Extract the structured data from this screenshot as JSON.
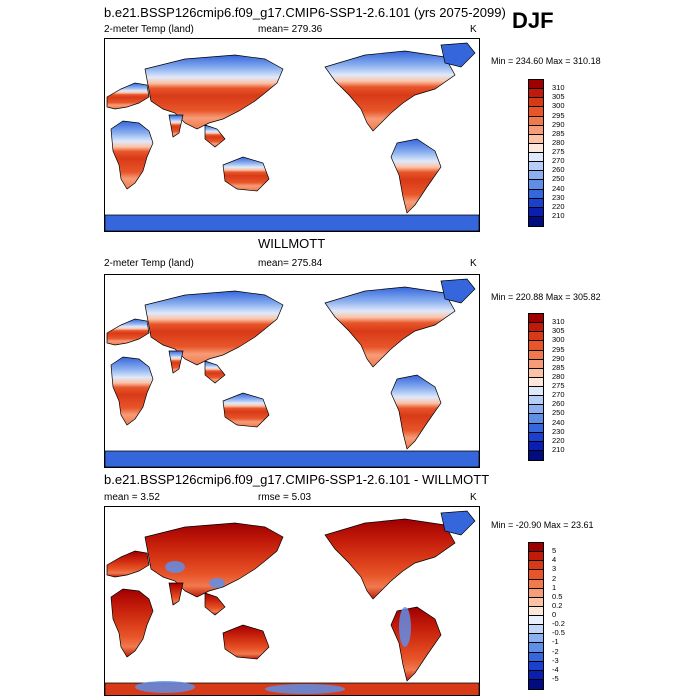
{
  "season": "DJF",
  "panels": [
    {
      "title": "b.e21.BSSP126cmip6.f09_g17.CMIP6-SSP1-2.6.101 (yrs 2075-2099)",
      "left_label": "2-meter Temp (land)",
      "center_label": "mean= 279.36",
      "right_label": "K",
      "minmax": "Min = 234.60 Max = 310.18",
      "kind": "abs"
    },
    {
      "title": "WILLMOTT",
      "left_label": "2-meter Temp (land)",
      "center_label": "mean= 275.84",
      "right_label": "K",
      "minmax": "Min = 220.88 Max = 305.82",
      "kind": "abs"
    },
    {
      "title": "b.e21.BSSP126cmip6.f09_g17.CMIP6-SSP1-2.6.101 - WILLMOTT",
      "left_label": "mean =   3.52",
      "center_label": "rmse =   5.03",
      "right_label": "K",
      "minmax": "Min = -20.90 Max =  23.61",
      "kind": "diff"
    }
  ],
  "chart_data": [
    {
      "type": "heatmap",
      "title": "b.e21.BSSP126cmip6.f09_g17.CMIP6-SSP1-2.6.101 (yrs 2075-2099)",
      "variable": "2-meter Temp (land)",
      "units": "K",
      "mean": 279.36,
      "min": 234.6,
      "max": 310.18,
      "colorbar_levels": [
        "310",
        "305",
        "300",
        "295",
        "290",
        "285",
        "280",
        "275",
        "270",
        "260",
        "250",
        "240",
        "230",
        "220",
        "210"
      ],
      "colorbar_colors": [
        "#9e0000",
        "#c21a0a",
        "#d83a17",
        "#e8552a",
        "#f07a4e",
        "#f79c78",
        "#fbc2a6",
        "#fde6da",
        "#dfe9fb",
        "#b6cdf6",
        "#8cb0ef",
        "#5f8ee6",
        "#3566dc",
        "#1b3fcf",
        "#0a1fb0",
        "#000c80"
      ]
    },
    {
      "type": "heatmap",
      "title": "WILLMOTT",
      "variable": "2-meter Temp (land)",
      "units": "K",
      "mean": 275.84,
      "min": 220.88,
      "max": 305.82,
      "colorbar_levels": [
        "310",
        "305",
        "300",
        "295",
        "290",
        "285",
        "280",
        "275",
        "270",
        "260",
        "250",
        "240",
        "230",
        "220",
        "210"
      ],
      "colorbar_colors": [
        "#9e0000",
        "#c21a0a",
        "#d83a17",
        "#e8552a",
        "#f07a4e",
        "#f79c78",
        "#fbc2a6",
        "#fde6da",
        "#dfe9fb",
        "#b6cdf6",
        "#8cb0ef",
        "#5f8ee6",
        "#3566dc",
        "#1b3fcf",
        "#0a1fb0",
        "#000c80"
      ]
    },
    {
      "type": "heatmap",
      "title": "b.e21.BSSP126cmip6.f09_g17.CMIP6-SSP1-2.6.101 - WILLMOTT",
      "units": "K",
      "mean": 3.52,
      "rmse": 5.03,
      "min": -20.9,
      "max": 23.61,
      "colorbar_levels": [
        "5",
        "4",
        "3",
        "2",
        "1",
        "0.5",
        "0.2",
        "0",
        "-0.2",
        "-0.5",
        "-1",
        "-2",
        "-3",
        "-4",
        "-5"
      ],
      "colorbar_colors": [
        "#9e0000",
        "#c21a0a",
        "#d83a17",
        "#e8552a",
        "#f07a4e",
        "#f79c78",
        "#fbc2a6",
        "#fde6da",
        "#eaf1fd",
        "#c3d6f8",
        "#8cb0ef",
        "#5f8ee6",
        "#3566dc",
        "#1b3fcf",
        "#0a1fb0",
        "#000c80"
      ]
    }
  ]
}
